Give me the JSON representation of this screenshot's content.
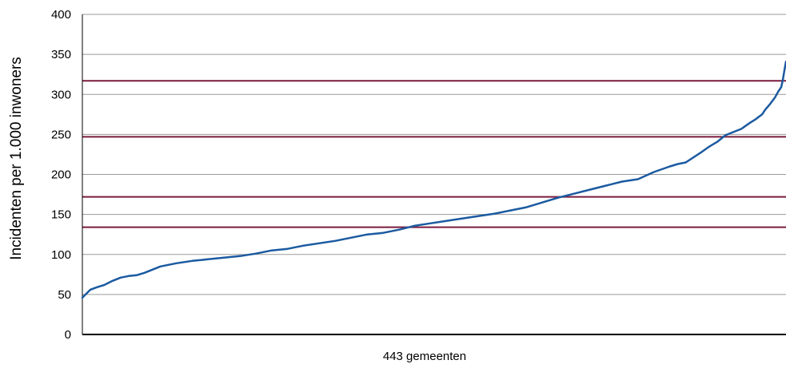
{
  "chart_data": {
    "type": "line",
    "title": "",
    "xlabel": "443 gemeenten",
    "ylabel": "Incidenten per 1.000 inwoners",
    "ylim": [
      0,
      400
    ],
    "yticks": [
      0,
      50,
      100,
      150,
      200,
      250,
      300,
      350,
      400
    ],
    "xlim": [
      1,
      443
    ],
    "grid": true,
    "n_points": 443,
    "reference_lines": [
      {
        "value": 134,
        "color": "#7b1a3c"
      },
      {
        "value": 172,
        "color": "#7b1a3c"
      },
      {
        "value": 247,
        "color": "#7b1a3c"
      },
      {
        "value": 317,
        "color": "#7b1a3c"
      }
    ],
    "series": [
      {
        "color": "#1b5aa0",
        "x": [
          1,
          3,
          6,
          10,
          15,
          20,
          25,
          30,
          35,
          40,
          50,
          55,
          60,
          70,
          80,
          90,
          100,
          110,
          120,
          130,
          140,
          150,
          160,
          170,
          180,
          190,
          200,
          210,
          220,
          230,
          240,
          250,
          260,
          270,
          280,
          290,
          300,
          310,
          320,
          330,
          340,
          350,
          360,
          370,
          375,
          380,
          390,
          395,
          400,
          405,
          410,
          415,
          420,
          424,
          428,
          430,
          433,
          436,
          438,
          440,
          441,
          442,
          443
        ],
        "y": [
          46,
          50,
          56,
          59,
          62,
          67,
          71,
          73,
          74,
          77,
          85,
          87,
          89,
          92,
          94,
          96,
          98,
          101,
          105,
          107,
          111,
          114,
          117,
          121,
          125,
          127,
          131,
          136,
          139,
          142,
          145,
          148,
          151,
          155,
          159,
          165,
          171,
          176,
          181,
          186,
          191,
          194,
          203,
          210,
          213,
          215,
          228,
          235,
          241,
          249,
          253,
          257,
          264,
          269,
          275,
          281,
          288,
          296,
          303,
          309,
          318,
          330,
          341
        ]
      }
    ]
  }
}
